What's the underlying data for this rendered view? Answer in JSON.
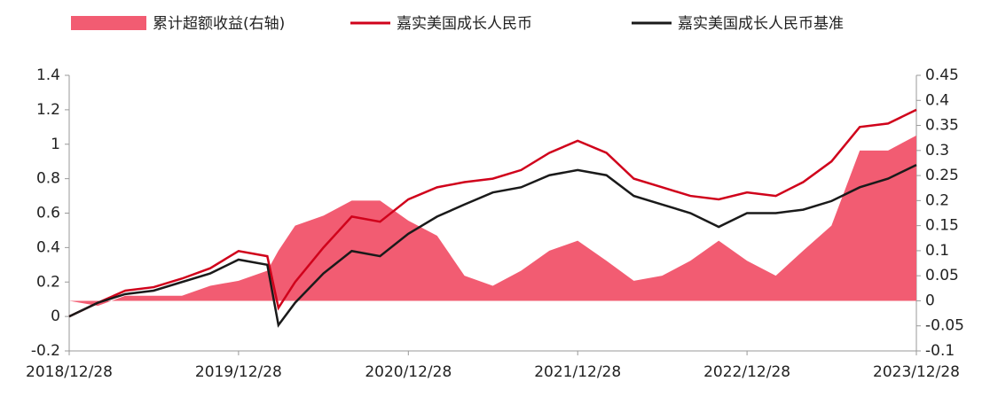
{
  "chart_data": {
    "type": "line",
    "x": [
      "2018/12/28",
      "2019/02/28",
      "2019/04/28",
      "2019/06/28",
      "2019/08/28",
      "2019/10/28",
      "2019/12/28",
      "2020/02/28",
      "2020/03/23",
      "2020/04/28",
      "2020/06/28",
      "2020/08/28",
      "2020/10/28",
      "2020/12/28",
      "2021/02/28",
      "2021/04/28",
      "2021/06/28",
      "2021/08/28",
      "2021/10/28",
      "2021/12/28",
      "2022/02/28",
      "2022/04/28",
      "2022/06/28",
      "2022/08/28",
      "2022/10/28",
      "2022/12/28",
      "2023/02/28",
      "2023/04/28",
      "2023/06/28",
      "2023/08/28",
      "2023/10/28",
      "2023/12/28"
    ],
    "series": [
      {
        "name": "累计超额收益(右轴)",
        "kind": "area",
        "axis": "y2",
        "color": "#f25c72",
        "values": [
          0,
          -0.01,
          0.01,
          0.01,
          0.01,
          0.03,
          0.04,
          0.06,
          0.1,
          0.15,
          0.17,
          0.2,
          0.2,
          0.16,
          0.13,
          0.05,
          0.03,
          0.06,
          0.1,
          0.12,
          0.08,
          0.04,
          0.05,
          0.08,
          0.12,
          0.08,
          0.05,
          0.1,
          0.15,
          0.3,
          0.3,
          0.33
        ]
      },
      {
        "name": "嘉实美国成长人民币",
        "kind": "line",
        "color": "#d0021b",
        "values": [
          0,
          0.08,
          0.15,
          0.17,
          0.22,
          0.28,
          0.38,
          0.35,
          0.05,
          0.2,
          0.4,
          0.58,
          0.55,
          0.68,
          0.75,
          0.78,
          0.8,
          0.85,
          0.95,
          1.02,
          0.95,
          0.8,
          0.75,
          0.7,
          0.68,
          0.72,
          0.7,
          0.78,
          0.9,
          1.1,
          1.12,
          1.2
        ]
      },
      {
        "name": "嘉实美国成长人民币基准",
        "kind": "line",
        "color": "#1a1a1a",
        "values": [
          0,
          0.08,
          0.13,
          0.15,
          0.2,
          0.25,
          0.33,
          0.3,
          -0.05,
          0.08,
          0.25,
          0.38,
          0.35,
          0.48,
          0.58,
          0.65,
          0.72,
          0.75,
          0.82,
          0.85,
          0.82,
          0.7,
          0.65,
          0.6,
          0.52,
          0.6,
          0.6,
          0.62,
          0.67,
          0.75,
          0.8,
          0.88
        ]
      }
    ],
    "xlim": [
      "2018/12/28",
      "2023/12/28"
    ],
    "xticks": [
      "2018/12/28",
      "2019/12/28",
      "2020/12/28",
      "2021/12/28",
      "2022/12/28",
      "2023/12/28"
    ],
    "ylim": [
      -0.2,
      1.4
    ],
    "yticks": [
      -0.2,
      0,
      0.2,
      0.4,
      0.6,
      0.8,
      1,
      1.2,
      1.4
    ],
    "y2lim": [
      -0.1,
      0.45
    ],
    "y2ticks": [
      -0.1,
      -0.05,
      0,
      0.05,
      0.1,
      0.15,
      0.2,
      0.25,
      0.3,
      0.35,
      0.4,
      0.45
    ]
  }
}
